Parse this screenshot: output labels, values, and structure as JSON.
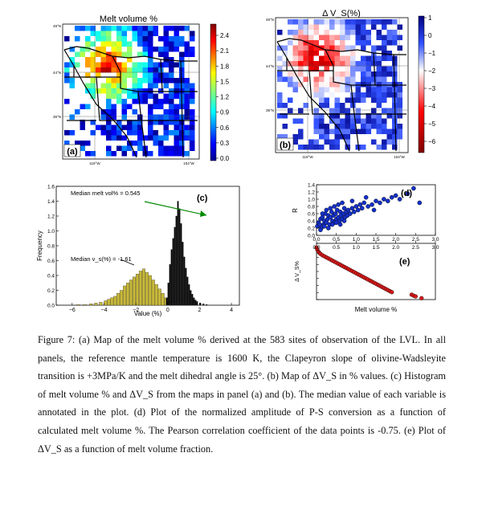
{
  "panel_a": {
    "title": "Melt volume %",
    "label": "(a)",
    "lat_labels": [
      "49°N",
      "44°N",
      "39°N"
    ],
    "lon_labels": [
      "119°W",
      "104°W"
    ],
    "colorbar_ticks": [
      "2.4",
      "2.1",
      "1.8",
      "1.5",
      "1.2",
      "0.9",
      "0.6",
      "0.3",
      "0.0"
    ],
    "colorbar_range": [
      0.0,
      2.55
    ]
  },
  "panel_b": {
    "title": "Δ V_S(%)",
    "label": "(b)",
    "lat_labels": [
      "49°N",
      "44°N",
      "39°N"
    ],
    "lon_labels": [
      "119°W",
      "104°W"
    ],
    "colorbar_ticks": [
      "1",
      "0",
      "−1",
      "−2",
      "−3",
      "−4",
      "−5",
      "−6"
    ],
    "colorbar_range": [
      -6.8,
      1.2
    ]
  },
  "chart_data": [
    {
      "type": "bar",
      "panel": "(c)",
      "xlabel": "Value (%)",
      "ylabel": "Frequency",
      "x_ticks": [
        -6,
        -4,
        -2,
        0,
        2,
        4
      ],
      "y_ticks": [
        0.0,
        0.2,
        0.4,
        0.6,
        0.8,
        1.0,
        1.2,
        1.4,
        1.6
      ],
      "xlim": [
        -7,
        4.5
      ],
      "ylim": [
        0,
        1.6
      ],
      "annotations": [
        {
          "text": "Median melt vol% = 0.545",
          "x": 0.545
        },
        {
          "text": "Median  v_s(%) = -1.61",
          "x": -1.61
        }
      ],
      "series": [
        {
          "color": "#c8b838",
          "bins": [
            -5.7,
            -5.3,
            -4.9,
            -4.6,
            -4.3,
            -4.0,
            -3.8,
            -3.6,
            -3.4,
            -3.2,
            -3.0,
            -2.8,
            -2.6,
            -2.4,
            -2.2,
            -2.0,
            -1.8,
            -1.6,
            -1.4,
            -1.2,
            -1.0,
            -0.8,
            -0.6,
            -0.4,
            -0.2,
            0.0
          ],
          "values": [
            0.01,
            0.01,
            0.02,
            0.03,
            0.04,
            0.06,
            0.08,
            0.1,
            0.12,
            0.16,
            0.2,
            0.26,
            0.3,
            0.34,
            0.38,
            0.42,
            0.46,
            0.49,
            0.44,
            0.4,
            0.34,
            0.28,
            0.22,
            0.16,
            0.1,
            0.05
          ]
        },
        {
          "color": "#000000",
          "bins": [
            -0.1,
            0.0,
            0.1,
            0.2,
            0.3,
            0.4,
            0.5,
            0.6,
            0.7,
            0.8,
            0.9,
            1.0,
            1.1,
            1.2,
            1.3,
            1.4,
            1.5,
            1.6,
            1.7,
            1.8,
            2.0,
            2.2,
            2.4
          ],
          "values": [
            0.1,
            0.3,
            0.55,
            0.75,
            0.9,
            1.05,
            1.2,
            1.4,
            1.3,
            1.1,
            0.85,
            0.65,
            0.5,
            0.38,
            0.28,
            0.2,
            0.15,
            0.1,
            0.07,
            0.05,
            0.03,
            0.02,
            0.01
          ]
        }
      ]
    },
    {
      "type": "scatter",
      "panel": "(d)",
      "xlabel": "",
      "ylabel": "R",
      "x_ticks": [
        0.0,
        0.5,
        1.0,
        1.5,
        2.0,
        2.5,
        3.0
      ],
      "y_ticks": [
        0.0,
        0.2,
        0.4,
        0.6,
        0.8,
        1.0,
        1.2,
        1.4
      ],
      "xlim": [
        0,
        3.0
      ],
      "ylim": [
        1.4,
        0.0
      ],
      "color": "#1530c8",
      "x": [
        0.02,
        0.05,
        0.08,
        0.1,
        0.12,
        0.15,
        0.18,
        0.2,
        0.22,
        0.25,
        0.28,
        0.3,
        0.33,
        0.35,
        0.38,
        0.4,
        0.43,
        0.45,
        0.48,
        0.5,
        0.52,
        0.55,
        0.58,
        0.6,
        0.62,
        0.65,
        0.68,
        0.7,
        0.72,
        0.75,
        0.78,
        0.8,
        0.85,
        0.9,
        0.95,
        1.0,
        1.05,
        1.1,
        1.15,
        1.2,
        1.3,
        1.4,
        1.5,
        1.6,
        1.7,
        1.8,
        1.9,
        2.0,
        2.1,
        2.3,
        2.45,
        2.6,
        0.1,
        0.2,
        0.3,
        0.4,
        0.5,
        0.6,
        0.7,
        0.15,
        0.25,
        0.35,
        0.45,
        0.55,
        0.65,
        0.9,
        1.25,
        1.45
      ],
      "y": [
        0.25,
        0.35,
        0.3,
        0.45,
        0.2,
        0.5,
        0.3,
        0.4,
        0.6,
        0.35,
        0.45,
        0.55,
        0.3,
        0.5,
        0.65,
        0.4,
        0.55,
        0.35,
        0.6,
        0.45,
        0.7,
        0.5,
        0.4,
        0.65,
        0.55,
        0.45,
        0.6,
        0.75,
        0.5,
        0.65,
        0.55,
        0.7,
        0.6,
        0.75,
        0.65,
        0.8,
        0.7,
        0.85,
        0.75,
        0.9,
        0.8,
        0.85,
        0.95,
        0.9,
        1.0,
        0.95,
        1.05,
        1.1,
        1.0,
        1.15,
        1.3,
        0.9,
        0.15,
        0.25,
        0.2,
        0.3,
        0.35,
        0.3,
        0.4,
        0.6,
        0.7,
        0.75,
        0.8,
        0.85,
        0.9,
        0.95,
        1.05,
        0.7
      ]
    },
    {
      "type": "scatter",
      "panel": "(e)",
      "xlabel": "Melt volume %",
      "ylabel": "Δ V_S%",
      "x_ticks": [
        0.0,
        0.5,
        1.0,
        1.5,
        2.0,
        2.5,
        3.0
      ],
      "xlim": [
        0,
        3.0
      ],
      "ylim": [
        -7,
        1
      ],
      "color": "#d81818",
      "x": [
        0.0,
        0.02,
        0.05,
        0.08,
        0.1,
        0.15,
        0.2,
        0.25,
        0.3,
        0.35,
        0.4,
        0.45,
        0.5,
        0.55,
        0.6,
        0.65,
        0.7,
        0.75,
        0.8,
        0.85,
        0.9,
        0.95,
        1.0,
        1.05,
        1.1,
        1.15,
        1.2,
        1.25,
        1.3,
        1.35,
        1.4,
        1.45,
        1.5,
        1.55,
        1.6,
        1.65,
        1.7,
        1.75,
        1.8,
        1.85,
        1.9,
        2.4,
        2.45,
        2.5,
        2.65
      ],
      "y": [
        0.4,
        0.1,
        -0.2,
        -0.4,
        -0.5,
        -0.7,
        -0.85,
        -1.0,
        -1.15,
        -1.3,
        -1.45,
        -1.6,
        -1.75,
        -1.9,
        -2.05,
        -2.2,
        -2.35,
        -2.5,
        -2.65,
        -2.8,
        -2.95,
        -3.1,
        -3.25,
        -3.4,
        -3.55,
        -3.7,
        -3.85,
        -4.0,
        -4.15,
        -4.3,
        -4.45,
        -4.6,
        -4.75,
        -4.9,
        -5.05,
        -5.2,
        -5.35,
        -5.5,
        -5.65,
        -5.8,
        -5.95,
        -6.3,
        -6.45,
        -6.55,
        -6.8
      ]
    }
  ],
  "caption": "Figure 7: (a) Map of the melt volume % derived at the 583 sites of observation of the LVL. In all panels, the reference mantle temperature is 1600 K, the Clapeyron slope of olivine-Wadsleyite transition is +3MPa/K and the melt dihedral angle is 25°. (b) Map of ΔV_S in % values. (c) Histogram of melt volume % and ΔV_S from the maps in panel (a) and (b). The median value of each variable is annotated in the plot. (d) Plot of the normalized amplitude of P-S conversion as a function of calculated melt volume %. The Pearson correlation coefficient of the data points is -0.75. (e) Plot of ΔV_S as a function of melt volume fraction."
}
